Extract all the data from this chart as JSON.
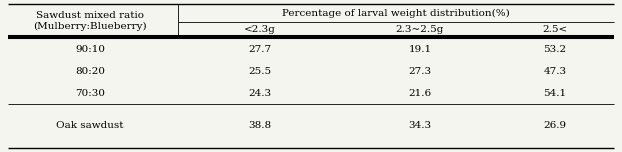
{
  "col_header_top": "Percentage of larval weight distribution(%)",
  "col_header_sub": [
    "<2.3g",
    "2.3~2.5g",
    "2.5<"
  ],
  "row_header_main_line1": "Sawdust mixed ratio",
  "row_header_main_line2": "(Mulberry:Blueberry)",
  "rows": [
    {
      "label": "90:10",
      "values": [
        "27.7",
        "19.1",
        "53.2"
      ]
    },
    {
      "label": "80:20",
      "values": [
        "25.5",
        "27.3",
        "47.3"
      ]
    },
    {
      "label": "70:30",
      "values": [
        "24.3",
        "21.6",
        "54.1"
      ]
    },
    {
      "label": "Oak sawdust",
      "values": [
        "38.8",
        "34.3",
        "26.9"
      ]
    }
  ],
  "font_size": 7.5,
  "font_family": "serif",
  "background": "#f5f5f0",
  "lw_outer": 1.0,
  "lw_inner": 0.6,
  "lw_thick": 1.5
}
